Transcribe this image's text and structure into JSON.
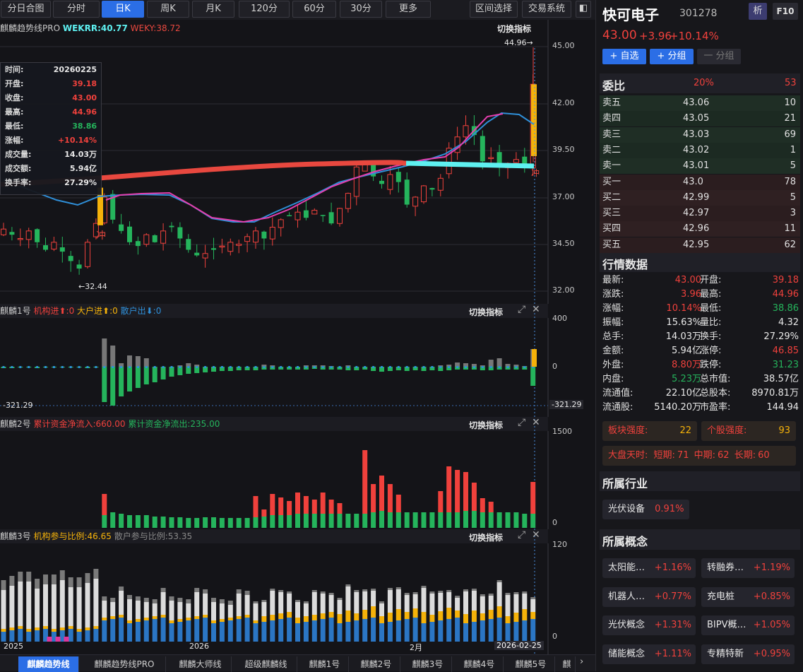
{
  "toolbar": {
    "periods": [
      "分日合图",
      "分时",
      "日K",
      "周K",
      "月K",
      "120分",
      "60分",
      "30分",
      "更多"
    ],
    "active_period": "日K",
    "range_select": "区间选择",
    "trade_system": "交易系统"
  },
  "panels": {
    "main": {
      "name": "麒麟趋势线PRO",
      "wekrr": "WEKRR:40.77",
      "weky": "WEKY:38.72",
      "switch": "切换指标",
      "yticks": [
        "45.00",
        "42.00",
        "39.50",
        "37.00",
        "34.50",
        "32.00"
      ],
      "high_label": "44.96→",
      "low_label": "←32.44",
      "chong": "冲"
    },
    "p1": {
      "name": "麒麟1号",
      "jg": "机构进⬆:0",
      "dh": "大户进⬆:0",
      "sh": "散户出⬇:0",
      "switch": "切换指标",
      "yticks": [
        "400",
        "0"
      ],
      "min_label": "-321.29",
      "min_label_right": "-321.29"
    },
    "p2": {
      "name": "麒麟2号",
      "inflow": "累计资金净流入:660.00",
      "outflow": "累计资金净流出:235.00",
      "switch": "切换指标",
      "yticks": [
        "1500",
        "0"
      ]
    },
    "p3": {
      "name": "麒麟3号",
      "inst": "机构参与比例:46.65",
      "retail": "散户参与比例:53.35",
      "switch": "切换指标",
      "yticks": [
        "120",
        "0"
      ]
    }
  },
  "xaxis": {
    "labels": [
      "2025",
      "2026",
      "2月"
    ],
    "cursor_date": "2026-02-25"
  },
  "tooltip": [
    {
      "k": "时间:",
      "v": "20260225",
      "c": "#e8e8e8"
    },
    {
      "k": "开盘:",
      "v": "39.18",
      "c": "#f0413c"
    },
    {
      "k": "收盘:",
      "v": "43.00",
      "c": "#f0413c"
    },
    {
      "k": "最高:",
      "v": "44.96",
      "c": "#f0413c"
    },
    {
      "k": "最低:",
      "v": "38.86",
      "c": "#25b45c"
    },
    {
      "k": "涨幅:",
      "v": "+10.14%",
      "c": "#f0413c"
    },
    {
      "k": "成交量:",
      "v": "14.03万",
      "c": "#e8e8e8"
    },
    {
      "k": "成交额:",
      "v": "5.94亿",
      "c": "#e8e8e8"
    },
    {
      "k": "换手率:",
      "v": "27.29%",
      "c": "#e8e8e8"
    }
  ],
  "bottom_tabs": [
    "麒麟趋势线",
    "麒麟趋势线PRO",
    "麒麟大师线",
    "超级麒麟线",
    "麒麟1号",
    "麒麟2号",
    "麒麟3号",
    "麒麟4号",
    "麒麟5号",
    "麒"
  ],
  "stock": {
    "name": "快可电子",
    "code": "301278",
    "analyze": "析",
    "f10": "F10",
    "price": "43.00",
    "change": "+3.96",
    "pct": "+10.14%",
    "btn_add": "+ 自选",
    "btn_group": "+ 分组",
    "btn_ungroup": "一 分组"
  },
  "orderbook": {
    "title": "委比",
    "ratio": "20%",
    "diff": "53",
    "asks": [
      [
        "卖五",
        "43.06",
        "10"
      ],
      [
        "卖四",
        "43.05",
        "21"
      ],
      [
        "卖三",
        "43.03",
        "69"
      ],
      [
        "卖二",
        "43.02",
        "1"
      ],
      [
        "卖一",
        "43.01",
        "5"
      ]
    ],
    "bids": [
      [
        "买一",
        "43.0",
        "78"
      ],
      [
        "买二",
        "42.99",
        "5"
      ],
      [
        "买三",
        "42.97",
        "3"
      ],
      [
        "买四",
        "42.96",
        "11"
      ],
      [
        "买五",
        "42.95",
        "62"
      ]
    ]
  },
  "market": {
    "title": "行情数据",
    "rows": [
      [
        {
          "k": "最新:",
          "v": "43.00",
          "c": "#f0413c"
        },
        {
          "k": "开盘:",
          "v": "39.18",
          "c": "#f0413c"
        }
      ],
      [
        {
          "k": "涨跌:",
          "v": "3.96",
          "c": "#f0413c"
        },
        {
          "k": "最高:",
          "v": "44.96",
          "c": "#f0413c"
        }
      ],
      [
        {
          "k": "涨幅:",
          "v": "10.14%",
          "c": "#f0413c"
        },
        {
          "k": "最低:",
          "v": "38.86",
          "c": "#25b45c"
        }
      ],
      [
        {
          "k": "振幅:",
          "v": "15.63%",
          "c": "#e8e8e8"
        },
        {
          "k": "量比:",
          "v": "4.32",
          "c": "#e8e8e8"
        }
      ],
      [
        {
          "k": "总手:",
          "v": "14.03万",
          "c": "#e8e8e8"
        },
        {
          "k": "换手:",
          "v": "27.29%",
          "c": "#e8e8e8"
        }
      ],
      [
        {
          "k": "金额:",
          "v": "5.94亿",
          "c": "#e8e8e8"
        },
        {
          "k": "涨停:",
          "v": "46.85",
          "c": "#f0413c"
        }
      ],
      [
        {
          "k": "外盘:",
          "v": "8.80万",
          "c": "#f0413c"
        },
        {
          "k": "跌停:",
          "v": "31.23",
          "c": "#25b45c"
        }
      ],
      [
        {
          "k": "内盘:",
          "v": "5.23万",
          "c": "#25b45c"
        },
        {
          "k": "总市值:",
          "v": "38.57亿",
          "c": "#e8e8e8"
        }
      ],
      [
        {
          "k": "流通值:",
          "v": "22.10亿",
          "c": "#e8e8e8"
        },
        {
          "k": "总股本:",
          "v": "8970.81万",
          "c": "#e8e8e8"
        }
      ],
      [
        {
          "k": "流通股:",
          "v": "5140.20万",
          "c": "#e8e8e8"
        },
        {
          "k": "市盈率:",
          "v": "144.94",
          "c": "#e8e8e8"
        }
      ]
    ]
  },
  "strength": {
    "sector_label": "板块强度:",
    "sector_value": "22",
    "stock_label": "个股强度:",
    "stock_value": "93",
    "market_label": "大盘天时:",
    "short_label": "短期:",
    "short": "71",
    "mid_label": "中期:",
    "mid": "62",
    "long_label": "长期:",
    "long": "60"
  },
  "industry": {
    "title": "所属行业",
    "items": [
      {
        "name": "光伏设备",
        "pct": "0.91%"
      }
    ]
  },
  "concepts": {
    "title": "所属概念",
    "items": [
      {
        "name": "太阳能…",
        "pct": "+1.16%"
      },
      {
        "name": "转融券…",
        "pct": "+1.19%"
      },
      {
        "name": "机器人…",
        "pct": "+0.77%"
      },
      {
        "name": "充电桩",
        "pct": "+0.85%"
      },
      {
        "name": "光伏概念",
        "pct": "+1.31%"
      },
      {
        "name": "BIPV概…",
        "pct": "+1.05%"
      },
      {
        "name": "储能概念",
        "pct": "+1.11%"
      },
      {
        "name": "专精特新",
        "pct": "+0.95%"
      }
    ]
  },
  "colors": {
    "up": "#f0413c",
    "down": "#25b45c",
    "accent": "#2b6ee6",
    "trend_red": "#e8483f",
    "trend_cyan": "#5ef0f0",
    "ma_blue": "#2f8fd8",
    "ma_pink": "#e53fae",
    "yellow": "#f5b20a"
  }
}
